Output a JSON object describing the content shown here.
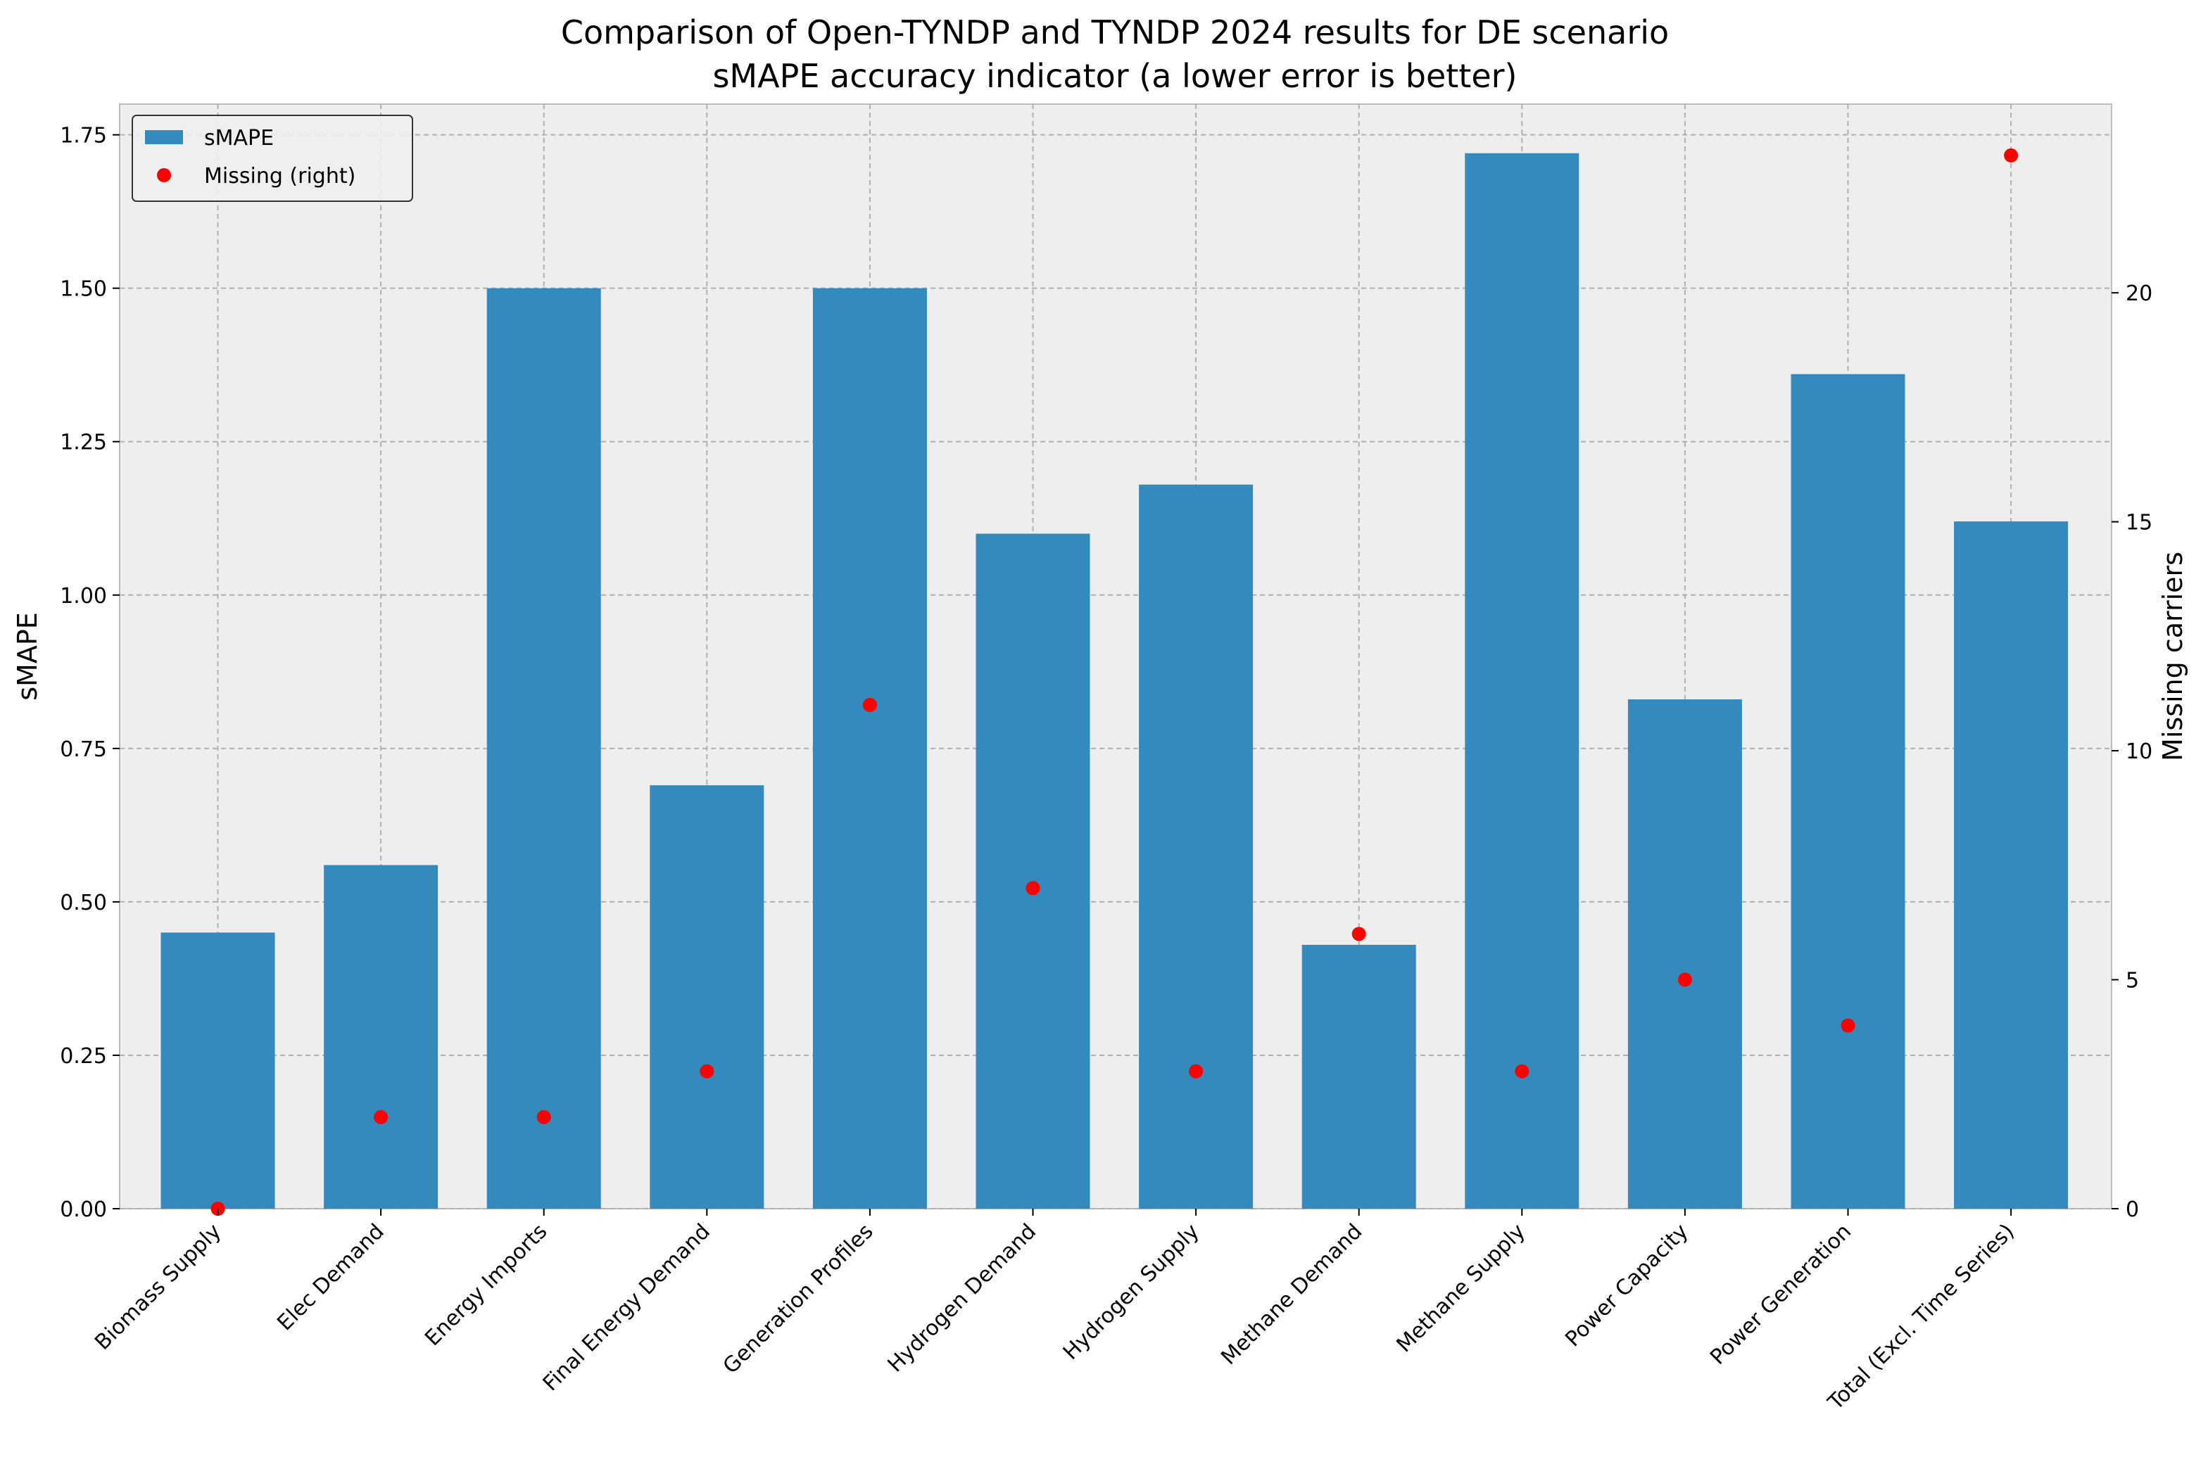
{
  "chart_data": {
    "type": "bar",
    "title": "Comparison of Open-TYNDP and TYNDP 2024 results for DE scenario",
    "subtitle": "sMAPE accuracy indicator (a lower error is better)",
    "ylabel": "sMAPE",
    "y2label": "Missing carriers",
    "ylim": [
      0,
      1.8
    ],
    "y2lim": [
      0,
      24.12
    ],
    "yticks": [
      "0.00",
      "0.25",
      "0.50",
      "0.75",
      "1.00",
      "1.25",
      "1.50",
      "1.75"
    ],
    "y2ticks": [
      "0",
      "5",
      "10",
      "15",
      "20"
    ],
    "grid": true,
    "legend_position": "top-left",
    "categories": [
      "Biomass Supply",
      "Elec Demand",
      "Energy Imports",
      "Final Energy Demand",
      "Generation Profiles",
      "Hydrogen Demand",
      "Hydrogen Supply",
      "Methane Demand",
      "Methane Supply",
      "Power Capacity",
      "Power Generation",
      "Total (Excl. Time Series)"
    ],
    "series": [
      {
        "name": "sMAPE",
        "axis": "left",
        "kind": "bar",
        "color": "#348abd",
        "values": [
          0.45,
          0.56,
          1.5,
          0.69,
          1.5,
          1.1,
          1.18,
          0.43,
          1.72,
          0.83,
          1.36,
          1.12
        ]
      },
      {
        "name": "Missing (right)",
        "axis": "right",
        "kind": "scatter",
        "color": "#ff0000",
        "values": [
          0,
          2,
          2,
          3,
          11,
          7,
          3,
          6,
          3,
          5,
          4,
          23
        ]
      }
    ]
  }
}
